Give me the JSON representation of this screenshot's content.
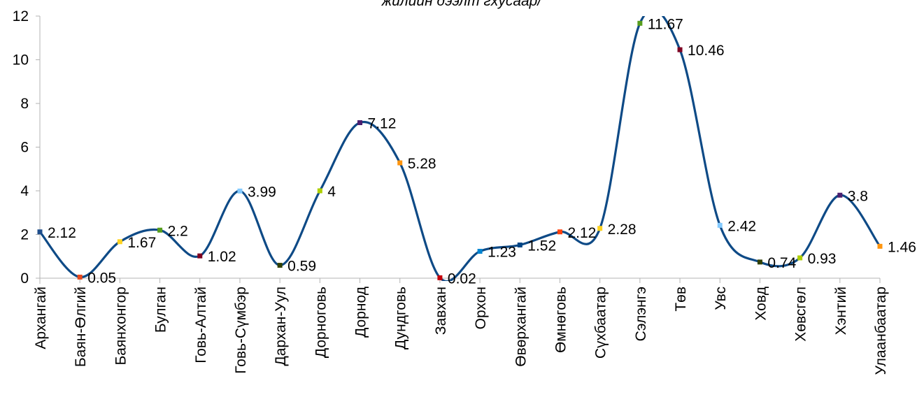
{
  "chart_data": {
    "type": "line",
    "title": "жилийн дээлт гхусаар/",
    "xlabel": "",
    "ylabel": "",
    "ylim": [
      0,
      12
    ],
    "yticks": [
      0,
      2,
      4,
      6,
      8,
      10,
      12
    ],
    "grid": false,
    "smooth": true,
    "line_color": "#0e4a86",
    "categories": [
      "Архангай",
      "Баян-Өлгий",
      "Баянхонгор",
      "Булган",
      "Говь-Алтай",
      "Говь-Сүмбэр",
      "Дархан-Уул",
      "Дорноговь",
      "Дорнод",
      "Дундговь",
      "Завхан",
      "Орхон",
      "Өвөрхангай",
      "Өмнөговь",
      "Сүхбаатар",
      "Сэлэнгэ",
      "Төв",
      "Увс",
      "Ховд",
      "Хөвсгөл",
      "Хэнтий",
      "Улаанбаатар"
    ],
    "values": [
      2.12,
      0.05,
      1.67,
      2.2,
      1.02,
      3.99,
      0.59,
      4,
      7.12,
      5.28,
      0.02,
      1.23,
      1.52,
      2.12,
      2.28,
      11.67,
      10.46,
      2.42,
      0.74,
      0.93,
      3.8,
      1.46
    ],
    "value_labels": [
      "2.12",
      "0.05",
      "1.67",
      "2.2",
      "1.02",
      "3.99",
      "0.59",
      "4",
      "7.12",
      "5.28",
      "0.02",
      "1.23",
      "1.52",
      "2.12",
      "2.28",
      "11.67",
      "10.46",
      "2.42",
      "0.74",
      "0.93",
      "3.8",
      "1.46"
    ],
    "marker_colors": [
      "#1f4e8c",
      "#e8491d",
      "#ffd320",
      "#579d1c",
      "#7e0021",
      "#83caff",
      "#314004",
      "#aecf00",
      "#4b1f6f",
      "#ff950e",
      "#c5000b",
      "#0084d1",
      "#004586",
      "#ff420e",
      "#ffd320",
      "#579d1c",
      "#7e0021",
      "#83caff",
      "#314004",
      "#aecf00",
      "#4b1f6f",
      "#ff950e"
    ]
  }
}
